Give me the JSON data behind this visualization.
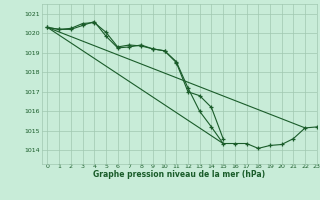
{
  "background_color": "#c8ecd8",
  "grid_color": "#a0c8b0",
  "line_color": "#1a5c2a",
  "xlabel": "Graphe pression niveau de la mer (hPa)",
  "xlim": [
    -0.5,
    23
  ],
  "ylim": [
    1013.3,
    1021.5
  ],
  "yticks": [
    1014,
    1015,
    1016,
    1017,
    1018,
    1019,
    1020,
    1021
  ],
  "xticks": [
    0,
    1,
    2,
    3,
    4,
    5,
    6,
    7,
    8,
    9,
    10,
    11,
    12,
    13,
    14,
    15,
    16,
    17,
    18,
    19,
    20,
    21,
    22,
    23
  ],
  "series_marked": [
    [
      1020.3,
      1020.2,
      1020.25,
      1020.5,
      1020.55,
      1020.05,
      1019.3,
      1019.4,
      1019.35,
      1019.2,
      1019.1,
      1018.5,
      1017.0,
      1016.8,
      1016.2,
      1014.6,
      null,
      null,
      null,
      null,
      null,
      null,
      null,
      null
    ],
    [
      1020.3,
      1020.2,
      1020.2,
      1020.4,
      1020.6,
      1019.85,
      1019.25,
      1019.3,
      1019.4,
      1019.2,
      1019.1,
      1018.55,
      1017.2,
      1016.0,
      1015.2,
      1014.35,
      1014.35,
      1014.35,
      1014.1,
      1014.25,
      1014.3,
      1014.6,
      1015.15,
      1015.2
    ]
  ],
  "series_straight": [
    [
      [
        0,
        1020.3
      ],
      [
        22,
        1015.15
      ]
    ],
    [
      [
        0,
        1020.3
      ],
      [
        15,
        1014.35
      ]
    ]
  ]
}
